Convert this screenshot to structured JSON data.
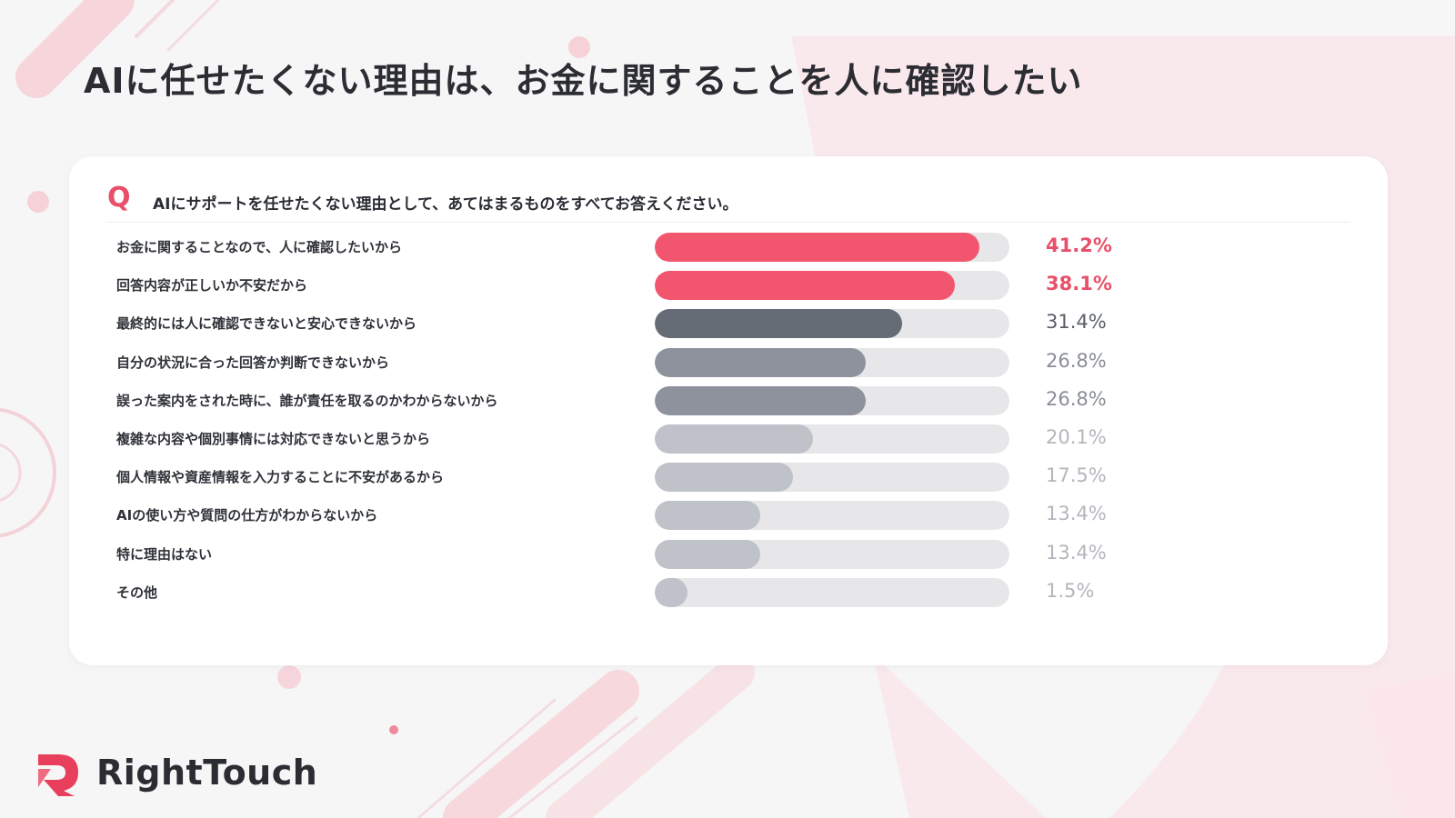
{
  "title": "AIに任せたくない理由は、お金に関することを人に確認したい",
  "question": {
    "mark": "Q",
    "text": "AIにサポートを任せたくない理由として、あてはまるものをすべてお答えください。"
  },
  "colors": {
    "accent": "#f2566f",
    "accent_text": "#e8506a",
    "tier2": "#666c76",
    "tier3": "#8e929c",
    "tier4": "#bfc2c8",
    "track": "#e7e7ea"
  },
  "chart_data": {
    "type": "bar",
    "orientation": "horizontal",
    "unit": "%",
    "xlim": [
      0,
      45
    ],
    "categories": [
      "お金に関することなので、人に確認したいから",
      "回答内容が正しいか不安だから",
      "最終的には人に確認できないと安心できないから",
      "自分の状況に合った回答か判断できないから",
      "誤った案内をされた時に、誰が責任を取るのかわからないから",
      "複雑な内容や個別事情には対応できないと思うから",
      "個人情報や資産情報を入力することに不安があるから",
      "AIの使い方や質問の仕方がわからないから",
      "特に理由はない",
      "その他"
    ],
    "values": [
      41.2,
      38.1,
      31.4,
      26.8,
      26.8,
      20.1,
      17.5,
      13.4,
      13.4,
      1.5
    ],
    "value_labels": [
      "41.2%",
      "38.1%",
      "31.4%",
      "26.8%",
      "26.8%",
      "20.1%",
      "17.5%",
      "13.4%",
      "13.4%",
      "1.5%"
    ],
    "grid": false,
    "legend": "none"
  },
  "brand": {
    "name": "RightTouch",
    "logo_icon": "righttouch-logo-icon"
  }
}
